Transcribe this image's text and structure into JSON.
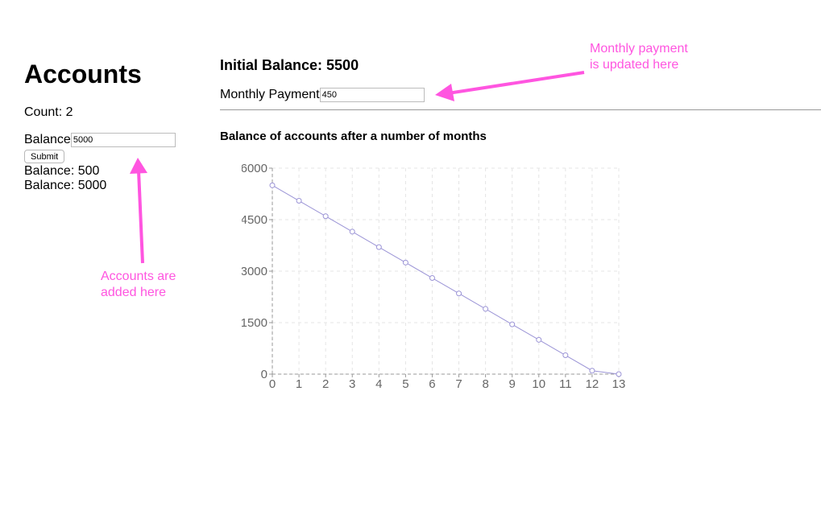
{
  "left": {
    "title": "Accounts",
    "count_text": "Count: 2",
    "balance_label": "Balance",
    "balance_value": "5000",
    "submit_label": "Submit",
    "accounts": [
      "Balance: 500",
      "Balance: 5000"
    ]
  },
  "right": {
    "initial_balance": "Initial Balance: 5500",
    "payment_label": "Monthly Payment",
    "payment_value": "450"
  },
  "annotations": {
    "payment_note_1": "Monthly payment",
    "payment_note_2": "is updated here",
    "accounts_note_1": "Accounts are",
    "accounts_note_2": "added here",
    "color": "#ff55e0"
  },
  "chart_data": {
    "type": "line",
    "title": "Balance of accounts after a number of months",
    "xlabel": "",
    "ylabel": "",
    "x": [
      0,
      1,
      2,
      3,
      4,
      5,
      6,
      7,
      8,
      9,
      10,
      11,
      12,
      13
    ],
    "series": [
      {
        "name": "Balance",
        "values": [
          5500,
          5050,
          4600,
          4150,
          3700,
          3250,
          2800,
          2350,
          1900,
          1450,
          1000,
          550,
          100,
          0
        ]
      }
    ],
    "xlim": [
      0,
      13
    ],
    "ylim": [
      0,
      6000
    ],
    "y_ticks": [
      0,
      1500,
      3000,
      4500,
      6000
    ],
    "grid": true,
    "line_color": "#9b94d6",
    "grid_color": "#e4e4e4",
    "axis_color": "#999999",
    "tick_text_color": "#666666"
  }
}
